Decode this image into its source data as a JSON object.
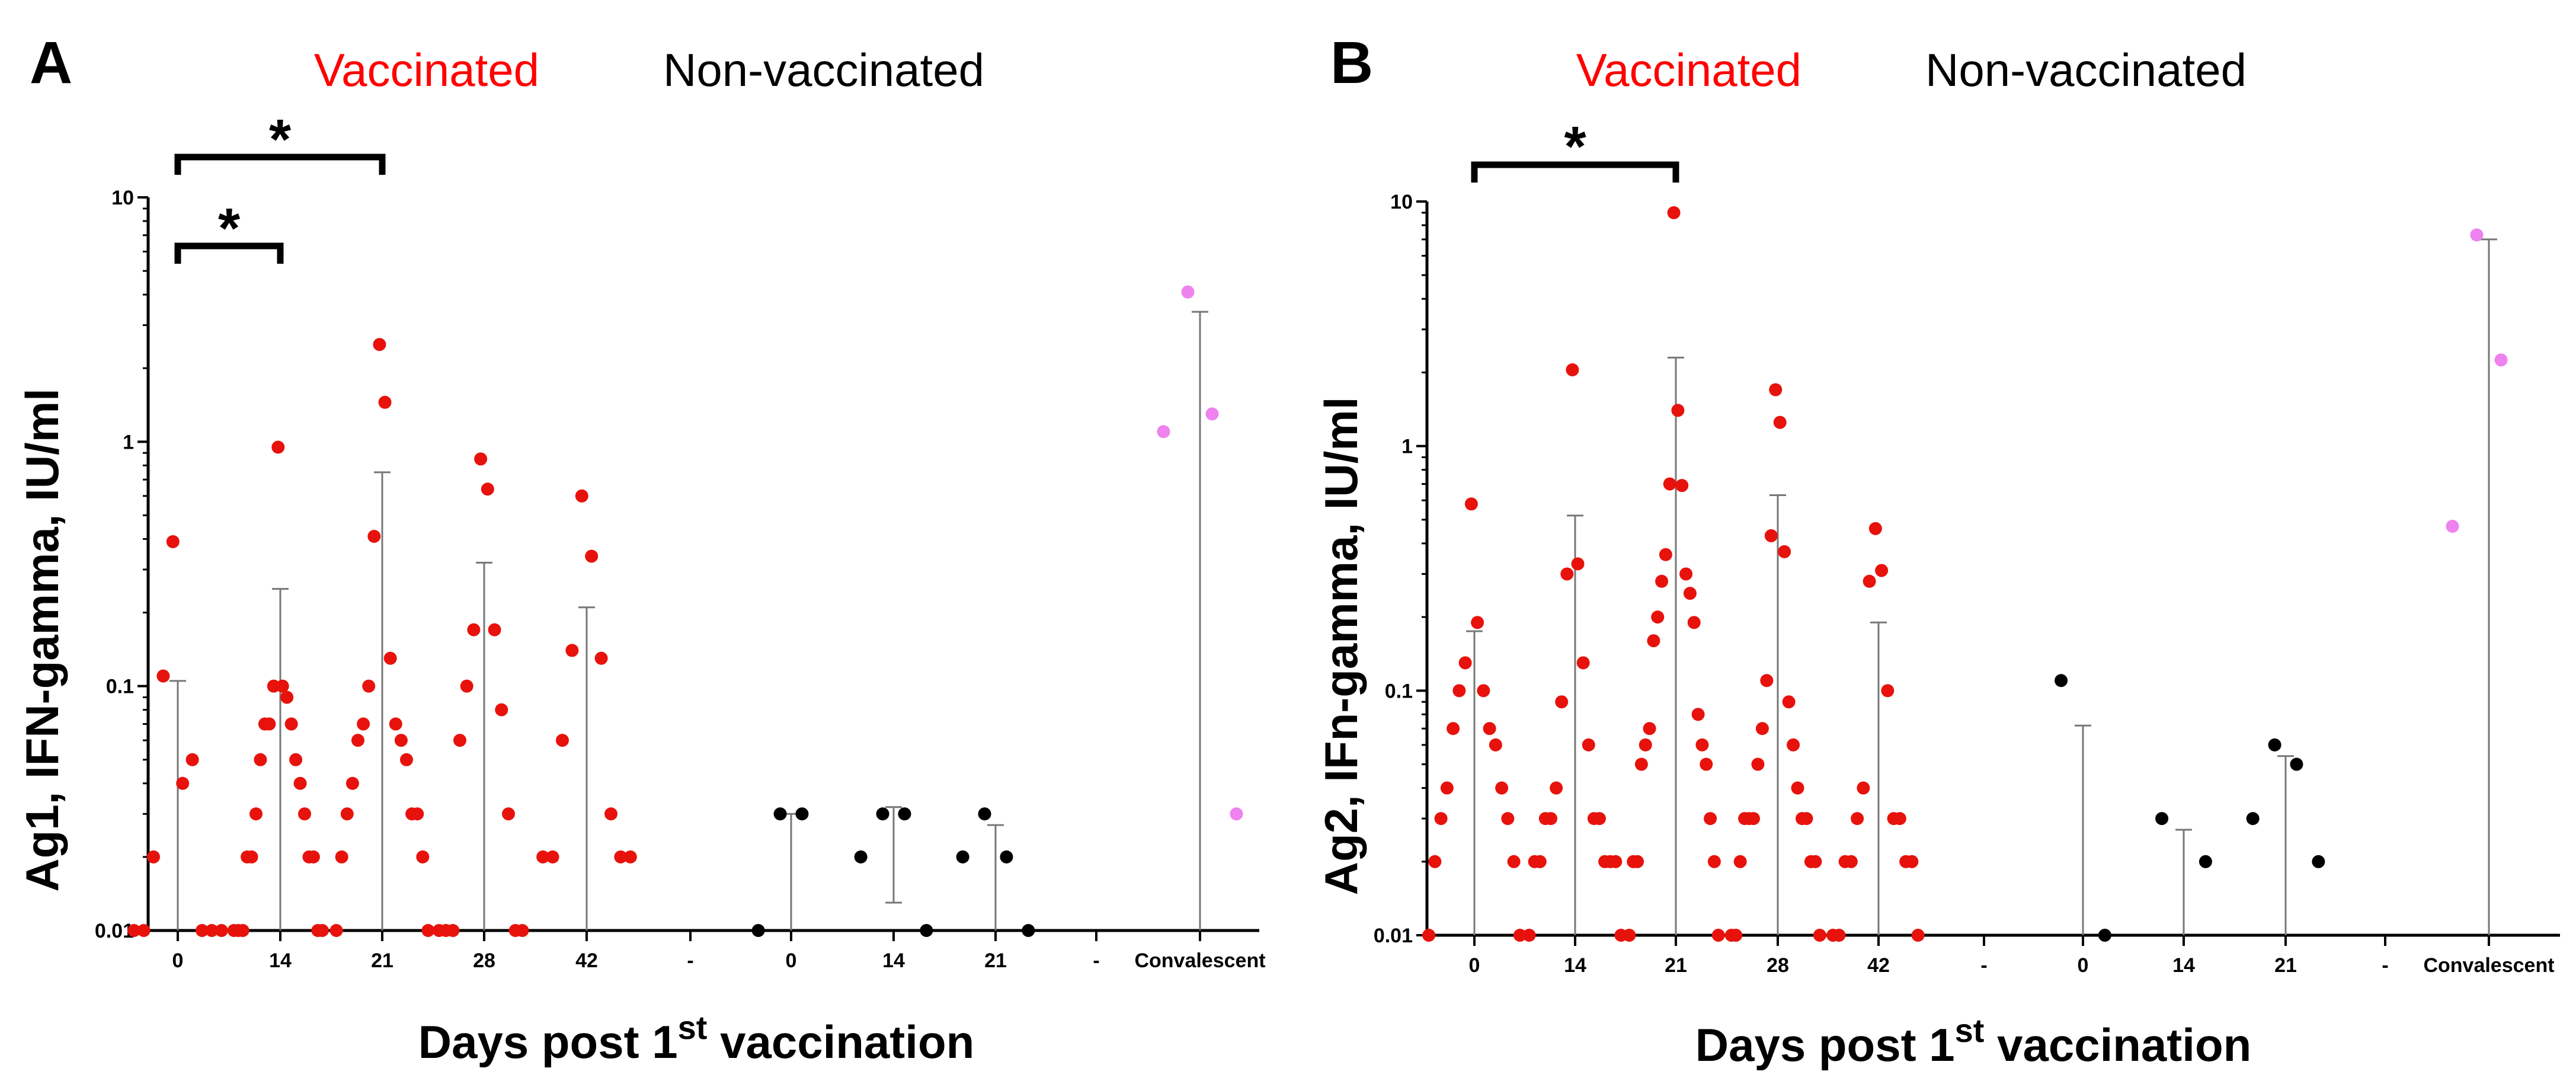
{
  "chart_data": [
    {
      "type": "scatter",
      "panel": "A",
      "ylabel": "Ag1, IFN-gamma, IU/ml",
      "xlabel": "Days post 1",
      "xlabel_sup": "st",
      "xlabel_tail": " vaccination",
      "yscale": "log",
      "ylim": [
        0.01,
        10
      ],
      "y_ticks": [
        "10",
        "1",
        "0.1",
        "0.01"
      ],
      "groups": [
        {
          "name": "Vaccinated",
          "color": "#ff0000"
        },
        {
          "name": "Non-vaccinated",
          "color": "#000000"
        }
      ],
      "categories": [
        "0",
        "14",
        "21",
        "28",
        "42",
        "-",
        "0",
        "14",
        "21",
        "-",
        "Convalescent"
      ],
      "series": [
        {
          "category": "0",
          "group": "Vaccinated",
          "color": "#e8120c",
          "points": [
            0.39,
            0.04,
            0.11,
            0.05,
            0.02,
            0.01,
            0.01,
            0.01,
            0.01,
            0.01
          ],
          "bar_top": 0.105
        },
        {
          "category": "14",
          "group": "Vaccinated",
          "color": "#e8120c",
          "points": [
            0.95,
            0.1,
            0.1,
            0.09,
            0.07,
            0.07,
            0.07,
            0.05,
            0.05,
            0.04,
            0.03,
            0.03,
            0.02,
            0.02,
            0.02,
            0.02,
            0.01,
            0.01,
            0.01,
            0.01,
            0.01
          ],
          "bar_top": 0.25
        },
        {
          "category": "21",
          "group": "Vaccinated",
          "color": "#e8120c",
          "points": [
            2.5,
            1.45,
            0.41,
            0.13,
            0.1,
            0.07,
            0.07,
            0.06,
            0.06,
            0.05,
            0.04,
            0.03,
            0.03,
            0.03,
            0.02,
            0.02,
            0.01,
            0.01
          ],
          "bar_top": 0.75
        },
        {
          "category": "28",
          "group": "Vaccinated",
          "color": "#e8120c",
          "points": [
            0.85,
            0.64,
            0.17,
            0.17,
            0.1,
            0.08,
            0.06,
            0.03,
            0.01,
            0.01,
            0.01,
            0.01,
            0.01
          ],
          "bar_top": 0.32
        },
        {
          "category": "42",
          "group": "Vaccinated",
          "color": "#e8120c",
          "points": [
            0.6,
            0.34,
            0.14,
            0.13,
            0.06,
            0.03,
            0.02,
            0.02,
            0.02,
            0.02
          ],
          "bar_top": 0.21
        },
        {
          "category": "0",
          "group": "Non-vaccinated",
          "color": "#000000",
          "points": [
            0.03,
            0.03,
            0.01
          ],
          "bar_top": 0.03
        },
        {
          "category": "14",
          "group": "Non-vaccinated",
          "color": "#000000",
          "points": [
            0.03,
            0.03,
            0.02,
            0.01
          ],
          "bar_top": 0.032,
          "bar_bottom": 0.013
        },
        {
          "category": "21",
          "group": "Non-vaccinated",
          "color": "#000000",
          "points": [
            0.03,
            0.02,
            0.02,
            0.01
          ],
          "bar_top": 0.027
        },
        {
          "category": "Convalescent",
          "group": "Convalescent",
          "color": "#ee82ee",
          "points": [
            4.1,
            1.3,
            1.1,
            0.03
          ],
          "bar_top": 3.4
        }
      ],
      "significance": [
        {
          "from": "0",
          "to": "21",
          "label": "*"
        },
        {
          "from": "0",
          "to": "14",
          "label": "*"
        }
      ]
    },
    {
      "type": "scatter",
      "panel": "B",
      "ylabel": "Ag2, IFn-gamma, IU/ml",
      "xlabel": "Days post 1",
      "xlabel_sup": "st",
      "xlabel_tail": " vaccination",
      "yscale": "log",
      "ylim": [
        0.01,
        10
      ],
      "y_ticks": [
        "10",
        "1",
        "0.1",
        "0.01"
      ],
      "groups": [
        {
          "name": "Vaccinated",
          "color": "#ff0000"
        },
        {
          "name": "Non-vaccinated",
          "color": "#000000"
        }
      ],
      "categories": [
        "0",
        "14",
        "21",
        "28",
        "42",
        "-",
        "0",
        "14",
        "21",
        "-",
        "Convalescent"
      ],
      "series": [
        {
          "category": "0",
          "group": "Vaccinated",
          "color": "#e8120c",
          "points": [
            0.58,
            0.19,
            0.13,
            0.1,
            0.1,
            0.07,
            0.07,
            0.06,
            0.04,
            0.04,
            0.03,
            0.03,
            0.02,
            0.02,
            0.01,
            0.01
          ],
          "bar_top": 0.175
        },
        {
          "category": "14",
          "group": "Vaccinated",
          "color": "#e8120c",
          "points": [
            2.05,
            0.33,
            0.3,
            0.13,
            0.09,
            0.06,
            0.04,
            0.03,
            0.03,
            0.03,
            0.03,
            0.02,
            0.02,
            0.02,
            0.02,
            0.02,
            0.01,
            0.01
          ],
          "bar_top": 0.52
        },
        {
          "category": "21",
          "group": "Vaccinated",
          "color": "#e8120c",
          "points": [
            9.0,
            1.4,
            0.7,
            0.69,
            0.36,
            0.3,
            0.28,
            0.25,
            0.2,
            0.19,
            0.16,
            0.08,
            0.07,
            0.06,
            0.06,
            0.05,
            0.05,
            0.03,
            0.02,
            0.02,
            0.02,
            0.01,
            0.01
          ],
          "bar_top": 2.3
        },
        {
          "category": "28",
          "group": "Vaccinated",
          "color": "#e8120c",
          "points": [
            1.7,
            1.25,
            0.43,
            0.37,
            0.11,
            0.09,
            0.07,
            0.06,
            0.05,
            0.04,
            0.03,
            0.03,
            0.03,
            0.03,
            0.03,
            0.02,
            0.02,
            0.02,
            0.01,
            0.01,
            0.01
          ],
          "bar_top": 0.63
        },
        {
          "category": "42",
          "group": "Vaccinated",
          "color": "#e8120c",
          "points": [
            0.46,
            0.31,
            0.28,
            0.1,
            0.04,
            0.03,
            0.03,
            0.03,
            0.02,
            0.02,
            0.02,
            0.02,
            0.01,
            0.01,
            0.01
          ],
          "bar_top": 0.19
        },
        {
          "category": "0",
          "group": "Non-vaccinated",
          "color": "#000000",
          "points": [
            0.11,
            0.01
          ],
          "bar_top": 0.072
        },
        {
          "category": "14",
          "group": "Non-vaccinated",
          "color": "#000000",
          "points": [
            0.03,
            0.02
          ],
          "bar_top": 0.027
        },
        {
          "category": "21",
          "group": "Non-vaccinated",
          "color": "#000000",
          "points": [
            0.06,
            0.05,
            0.03,
            0.02
          ],
          "bar_top": 0.054
        },
        {
          "category": "Convalescent",
          "group": "Convalescent",
          "color": "#ee82ee",
          "points": [
            7.3,
            2.25,
            0.47
          ],
          "bar_top": 7.0
        }
      ],
      "significance": [
        {
          "from": "0",
          "to": "21",
          "label": "*"
        }
      ]
    }
  ]
}
